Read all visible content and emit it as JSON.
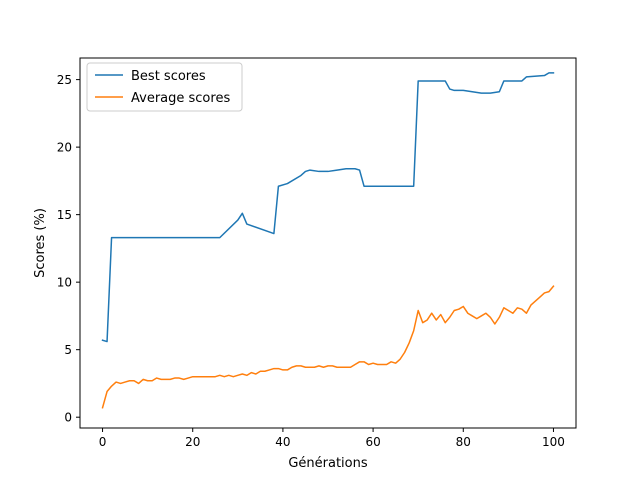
{
  "chart_data": {
    "type": "line",
    "xlabel": "Générations",
    "ylabel": "Scores (%)",
    "xlim": [
      -5,
      105
    ],
    "ylim": [
      -0.8,
      26.6
    ],
    "xticks": [
      0,
      20,
      40,
      60,
      80,
      100
    ],
    "yticks": [
      0,
      5,
      10,
      15,
      20,
      25
    ],
    "grid": false,
    "legend_position": "top-left",
    "series": [
      {
        "name": "Best scores",
        "color": "#1f77b4",
        "x": [
          0,
          1,
          2,
          26,
          30,
          31,
          32,
          38,
          39,
          41,
          44,
          45,
          46,
          48,
          50,
          52,
          54,
          56,
          57,
          58,
          69,
          70,
          76,
          77,
          78,
          80,
          82,
          84,
          86,
          88,
          89,
          93,
          94,
          98,
          99,
          100
        ],
        "y": [
          5.7,
          5.6,
          13.3,
          13.3,
          14.6,
          15.1,
          14.3,
          13.6,
          17.1,
          17.3,
          17.9,
          18.2,
          18.3,
          18.2,
          18.2,
          18.3,
          18.4,
          18.4,
          18.3,
          17.1,
          17.1,
          24.9,
          24.9,
          24.3,
          24.2,
          24.2,
          24.1,
          24.0,
          24.0,
          24.1,
          24.9,
          24.9,
          25.2,
          25.3,
          25.5,
          25.5
        ]
      },
      {
        "name": "Average scores",
        "color": "#ff7f0e",
        "x": [
          0,
          1,
          2,
          3,
          4,
          5,
          6,
          7,
          8,
          9,
          10,
          11,
          12,
          13,
          14,
          15,
          16,
          17,
          18,
          19,
          20,
          21,
          22,
          23,
          24,
          25,
          26,
          27,
          28,
          29,
          30,
          31,
          32,
          33,
          34,
          35,
          36,
          37,
          38,
          39,
          40,
          41,
          42,
          43,
          44,
          45,
          46,
          47,
          48,
          49,
          50,
          51,
          52,
          53,
          54,
          55,
          56,
          57,
          58,
          59,
          60,
          61,
          62,
          63,
          64,
          65,
          66,
          67,
          68,
          69,
          70,
          71,
          72,
          73,
          74,
          75,
          76,
          77,
          78,
          79,
          80,
          81,
          82,
          83,
          84,
          85,
          86,
          87,
          88,
          89,
          90,
          91,
          92,
          93,
          94,
          95,
          96,
          97,
          98,
          99,
          100
        ],
        "y": [
          0.7,
          1.9,
          2.3,
          2.6,
          2.5,
          2.6,
          2.7,
          2.7,
          2.5,
          2.8,
          2.7,
          2.7,
          2.9,
          2.8,
          2.8,
          2.8,
          2.9,
          2.9,
          2.8,
          2.9,
          3.0,
          3.0,
          3.0,
          3.0,
          3.0,
          3.0,
          3.1,
          3.0,
          3.1,
          3.0,
          3.1,
          3.2,
          3.1,
          3.3,
          3.2,
          3.4,
          3.4,
          3.5,
          3.6,
          3.6,
          3.5,
          3.5,
          3.7,
          3.8,
          3.8,
          3.7,
          3.7,
          3.7,
          3.8,
          3.7,
          3.8,
          3.8,
          3.7,
          3.7,
          3.7,
          3.7,
          3.9,
          4.1,
          4.1,
          3.9,
          4.0,
          3.9,
          3.9,
          3.9,
          4.1,
          4.0,
          4.3,
          4.8,
          5.5,
          6.4,
          7.9,
          7.0,
          7.2,
          7.7,
          7.2,
          7.6,
          7.0,
          7.4,
          7.9,
          8.0,
          8.2,
          7.7,
          7.5,
          7.3,
          7.5,
          7.7,
          7.4,
          6.9,
          7.4,
          8.1,
          7.9,
          7.7,
          8.1,
          8.0,
          7.7,
          8.3,
          8.6,
          8.9,
          9.2,
          9.3,
          9.7
        ]
      }
    ]
  }
}
